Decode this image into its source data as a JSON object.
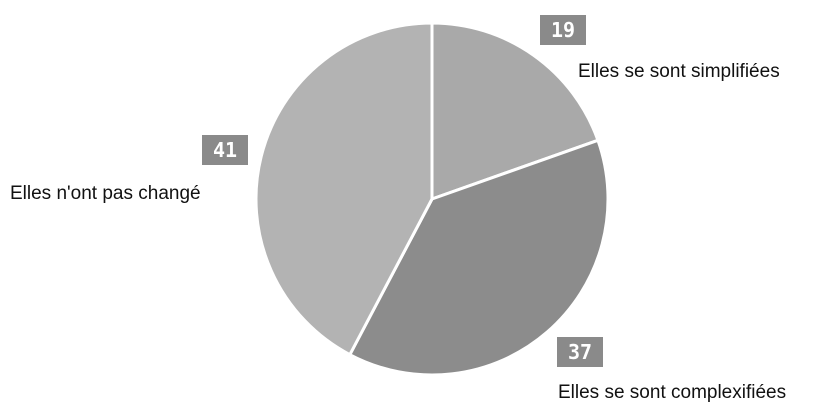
{
  "chart_data": {
    "type": "pie",
    "title": "",
    "slices": [
      {
        "label": "Elles se sont simplifiées",
        "value": 19,
        "color": "#a9a9a9"
      },
      {
        "label": "Elles se sont complexifiées",
        "value": 37,
        "color": "#8c8c8c"
      },
      {
        "label": "Elles n'ont pas changé",
        "value": 41,
        "color": "#b3b3b3"
      }
    ],
    "start_angle": "12 o'clock",
    "direction": "clockwise",
    "legend": "none",
    "data_labels": "value in dark box above category name"
  }
}
